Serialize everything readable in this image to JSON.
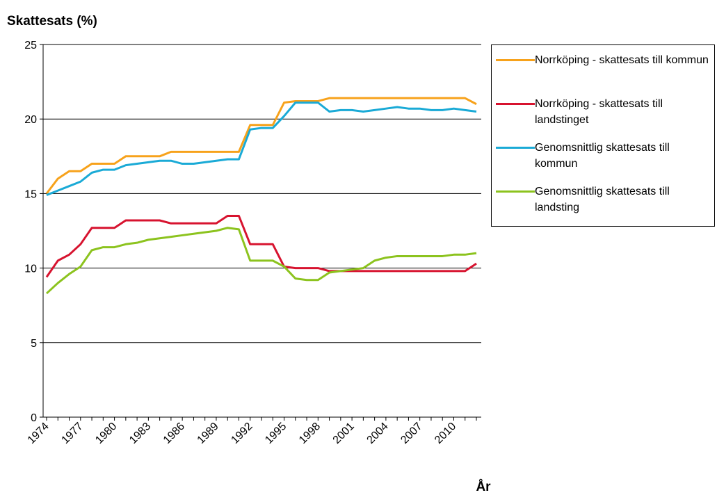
{
  "chart_data": {
    "type": "line",
    "title": "Skattesats (%)",
    "x_label": "År",
    "categories": [
      "1974",
      null,
      null,
      "1977",
      null,
      null,
      "1980",
      null,
      null,
      "1983",
      null,
      null,
      "1986",
      null,
      null,
      "1989",
      null,
      null,
      "1992",
      null,
      null,
      "1995",
      null,
      null,
      "1998",
      null,
      null,
      "2001",
      null,
      null,
      "2004",
      null,
      null,
      "2007",
      null,
      null,
      "2010",
      null,
      null
    ],
    "series": [
      {
        "name": "Norrköping - skattesats till kommun",
        "color": "#f7a21b",
        "values": [
          15.0,
          16.0,
          16.5,
          16.5,
          17.0,
          17.0,
          17.0,
          17.5,
          17.5,
          17.5,
          17.5,
          17.8,
          17.8,
          17.8,
          17.8,
          17.8,
          17.8,
          17.8,
          19.6,
          19.6,
          19.6,
          21.1,
          21.2,
          21.2,
          21.2,
          21.4,
          21.4,
          21.4,
          21.4,
          21.4,
          21.4,
          21.4,
          21.4,
          21.4,
          21.4,
          21.4,
          21.4,
          21.4,
          21.0
        ]
      },
      {
        "name": "Norrköping - skattesats till landstinget",
        "color": "#d7132f",
        "values": [
          9.4,
          10.5,
          10.9,
          11.6,
          12.7,
          12.7,
          12.7,
          13.2,
          13.2,
          13.2,
          13.2,
          13.0,
          13.0,
          13.0,
          13.0,
          13.0,
          13.5,
          13.5,
          11.6,
          11.6,
          11.6,
          10.1,
          10.0,
          10.0,
          10.0,
          9.8,
          9.8,
          9.8,
          9.8,
          9.8,
          9.8,
          9.8,
          9.8,
          9.8,
          9.8,
          9.8,
          9.8,
          9.8,
          10.3
        ]
      },
      {
        "name": "Genomsnittlig skattesats till kommun",
        "color": "#1aaad6",
        "values": [
          14.9,
          15.2,
          15.5,
          15.8,
          16.4,
          16.6,
          16.6,
          16.9,
          17.0,
          17.1,
          17.2,
          17.2,
          17.0,
          17.0,
          17.1,
          17.2,
          17.3,
          17.3,
          19.3,
          19.4,
          19.4,
          20.2,
          21.1,
          21.1,
          21.1,
          20.5,
          20.6,
          20.6,
          20.5,
          20.6,
          20.7,
          20.8,
          20.7,
          20.7,
          20.6,
          20.6,
          20.7,
          20.6,
          20.5
        ]
      },
      {
        "name": "Genomsnittlig skattesats till landsting",
        "color": "#8cc31e",
        "values": [
          8.3,
          9.0,
          9.6,
          10.1,
          11.2,
          11.4,
          11.4,
          11.6,
          11.7,
          11.9,
          12.0,
          12.1,
          12.2,
          12.3,
          12.4,
          12.5,
          12.7,
          12.6,
          10.5,
          10.5,
          10.5,
          10.1,
          9.3,
          9.2,
          9.2,
          9.7,
          9.8,
          9.9,
          10.0,
          10.5,
          10.7,
          10.8,
          10.8,
          10.8,
          10.8,
          10.8,
          10.9,
          10.9,
          11.0
        ]
      }
    ],
    "ylim": [
      0,
      25
    ],
    "yticks": [
      0,
      5,
      10,
      15,
      20,
      25
    ],
    "grid": true
  }
}
